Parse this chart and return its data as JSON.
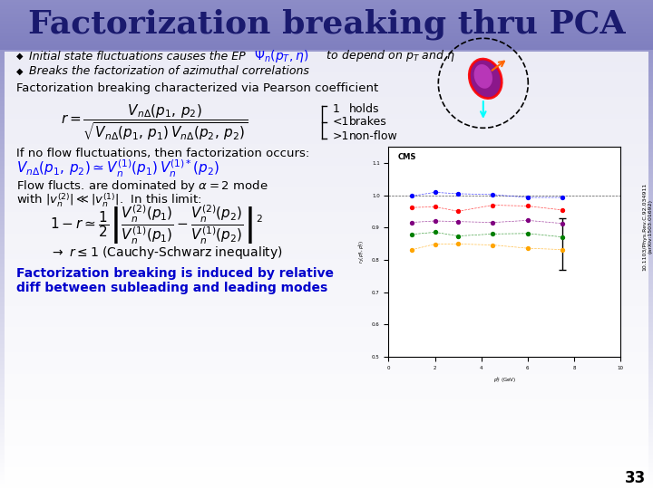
{
  "title": "Factorization breaking thru PCA",
  "title_color": "#1a1a6e",
  "title_fontsize": 26,
  "bullet1_main": "Initial state fluctuations causes the EP ",
  "bullet1_math": "$\\Psi_n(p_T,\\eta)$",
  "bullet1_end": "  to depend on $p_T$ and $\\eta$",
  "bullet2": "Breaks the factorization of azimuthal correlations",
  "section1": "Factorization breaking characterized via Pearson coefficient",
  "section2": "If no flow fluctuations, then factorization occurs:",
  "section3_a": "Flow flucts. are dominated by $\\alpha = 2$ mode",
  "section3_b": "with $|v_n^{(2)}| \\ll |v_n^{(1)}|$.  In this limit:",
  "arrow_text": "$\\rightarrow$ $r \\leq 1$ (Cauchy-Schwarz inequality)",
  "bottom_text_a": "Factorization breaking is induced by relative",
  "bottom_text_b": "diff between subleading and leading modes",
  "bottom_text_color": "#0000cc",
  "slide_number": "33",
  "ref_text": "10.1103/Phys.Rev.C.92.034911\n(arXiv:1503.01692)"
}
